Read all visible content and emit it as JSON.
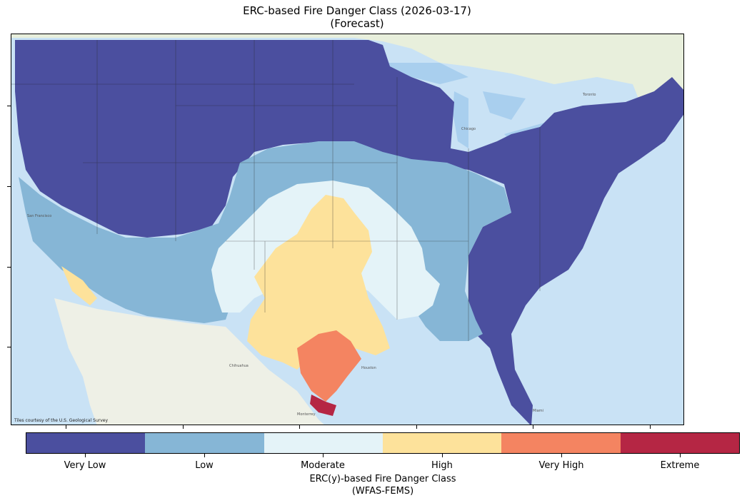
{
  "title": {
    "line1": "ERC-based Fire Danger Class (2026-03-17)",
    "line2": "(Forecast)"
  },
  "map": {
    "attribution": "Tiles courtesy of the U.S. Geological Survey",
    "place_labels": [
      "San Francisco",
      "Chicago",
      "Toronto",
      "Chihuahua",
      "Monterrey",
      "Houston",
      "Miami"
    ],
    "basemap_colors": {
      "water": "#cfe6f7",
      "land": "#e9efe0"
    }
  },
  "legend": {
    "classes": [
      {
        "label": "Very Low",
        "color": "#4b4f9f"
      },
      {
        "label": "Low",
        "color": "#86b6d6"
      },
      {
        "label": "Moderate",
        "color": "#e4f3f8"
      },
      {
        "label": "High",
        "color": "#fde29b"
      },
      {
        "label": "Very High",
        "color": "#f48461"
      },
      {
        "label": "Extreme",
        "color": "#b52644"
      }
    ],
    "title_line1": "ERC(y)-based Fire Danger Class",
    "title_line2": "(WFAS-FEMS)"
  }
}
